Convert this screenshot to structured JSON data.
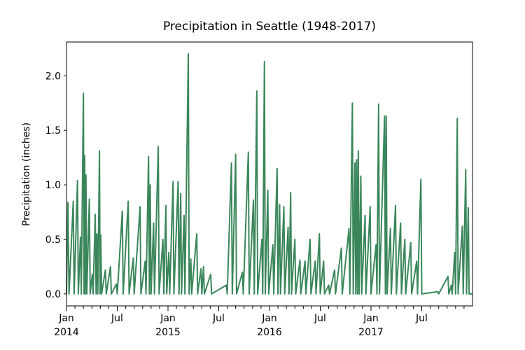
{
  "chart_data": {
    "type": "line",
    "title": "Precipitation in Seattle (1948-2017)",
    "y_label": "Precipitation (inches)",
    "series": [
      {
        "name": "precipitation",
        "color": "#3a865a",
        "x": [
          0,
          0.17,
          0.3,
          0.8,
          0.9,
          1.3,
          1.4,
          1.65,
          1.75,
          2.0,
          2.08,
          2.15,
          2.22,
          2.3,
          2.4,
          2.7,
          2.8,
          3.05,
          3.15,
          3.4,
          3.5,
          3.6,
          3.7,
          3.9,
          3.97,
          4.05,
          4.15,
          4.6,
          4.7,
          5.2,
          5.3,
          5.9,
          6.0,
          6.6,
          6.7,
          7.3,
          7.4,
          7.9,
          8.0,
          8.7,
          8.8,
          9.3,
          9.4,
          9.7,
          9.8,
          9.9,
          10.0,
          10.3,
          10.4,
          10.85,
          10.95,
          11.4,
          11.5,
          11.75,
          11.85,
          12.1,
          12.2,
          12.6,
          12.7,
          13.2,
          13.3,
          13.5,
          13.6,
          13.9,
          14.0,
          14.4,
          14.5,
          14.7,
          14.8,
          15.4,
          15.5,
          15.9,
          16.0,
          16.2,
          16.3,
          17.05,
          17.15,
          18.9,
          19.0,
          19.5,
          19.6,
          20.0,
          20.1,
          20.8,
          20.9,
          21.5,
          21.6,
          22.1,
          22.2,
          22.5,
          22.6,
          23.1,
          23.2,
          23.4,
          23.5,
          23.8,
          23.9,
          24.4,
          24.5,
          24.9,
          25.0,
          25.2,
          25.3,
          25.7,
          25.8,
          26.2,
          26.3,
          26.5,
          26.6,
          27.0,
          27.1,
          27.6,
          27.7,
          28.2,
          28.3,
          28.8,
          28.9,
          29.4,
          29.5,
          29.9,
          30.0,
          30.4,
          30.5,
          31.0,
          31.1,
          31.7,
          31.8,
          32.5,
          32.6,
          33.4,
          33.5,
          33.8,
          33.9,
          34.1,
          34.2,
          34.3,
          34.4,
          34.5,
          34.6,
          34.8,
          34.9,
          35.3,
          35.4,
          35.9,
          36.0,
          36.6,
          36.7,
          36.9,
          37.0,
          37.6,
          37.7,
          37.8,
          37.9,
          38.3,
          38.4,
          38.9,
          39.0,
          39.5,
          39.6,
          40.0,
          40.1,
          40.7,
          40.8,
          41.4,
          41.5,
          41.9,
          42.0,
          43.9,
          44.0,
          45.1,
          45.2,
          45.5,
          45.6,
          45.9,
          46.0,
          46.2,
          46.3,
          46.8,
          46.9,
          47.2,
          47.3,
          47.5,
          47.6,
          48
        ],
        "values": [
          0,
          0.84,
          0,
          0.85,
          0,
          1.04,
          0,
          0.52,
          0,
          1.84,
          0,
          1.27,
          0,
          1.09,
          0,
          0.87,
          0,
          0.18,
          0,
          0.73,
          0,
          0.55,
          0,
          1.31,
          0,
          0.54,
          0,
          0.22,
          0,
          0.25,
          0,
          0.09,
          0,
          0.76,
          0,
          0.85,
          0,
          0.33,
          0,
          0.8,
          0,
          0.3,
          0,
          1.26,
          0,
          1.0,
          0,
          0.65,
          0,
          1.35,
          0,
          0.5,
          0,
          0.81,
          0,
          0.38,
          0,
          1.03,
          0,
          1.03,
          0,
          0.92,
          0,
          0.72,
          0,
          2.2,
          0,
          0.32,
          0,
          0.55,
          0,
          0.23,
          0,
          0.25,
          0,
          0.18,
          0,
          0.08,
          0,
          1.2,
          0,
          1.28,
          0,
          0.2,
          0,
          1.3,
          0,
          0.86,
          0,
          1.86,
          0,
          0.5,
          0,
          2.13,
          0,
          0.95,
          0,
          0.45,
          0,
          1.15,
          0,
          0.82,
          0,
          0.8,
          0,
          0.61,
          0,
          0.93,
          0,
          0.5,
          0,
          0.31,
          0,
          0.3,
          0,
          0.5,
          0,
          0.3,
          0,
          0.55,
          0,
          0.3,
          0,
          0.08,
          0,
          0.22,
          0,
          0.42,
          0,
          0.6,
          0,
          1.75,
          0,
          1.2,
          0,
          1.23,
          0,
          1.31,
          0,
          1.08,
          0,
          0.72,
          0,
          0.8,
          0,
          0.45,
          0,
          1.74,
          0,
          1.63,
          0,
          1.63,
          0,
          0.6,
          0,
          0.81,
          0,
          0.65,
          0,
          0.5,
          0,
          0.47,
          0,
          0.3,
          0,
          1.05,
          0,
          0.02,
          0,
          0.16,
          0,
          0.08,
          0,
          0.38,
          0,
          1.61,
          0,
          0.62,
          0,
          1.14,
          0,
          0.79,
          0,
          0
        ]
      }
    ],
    "xlim": [
      0,
      48
    ],
    "xticks": [
      {
        "value": 0,
        "label": "Jan\n2014"
      },
      {
        "value": 6,
        "label": "Jul"
      },
      {
        "value": 12,
        "label": "Jan\n2015"
      },
      {
        "value": 18,
        "label": "Jul"
      },
      {
        "value": 24,
        "label": "Jan\n2016"
      },
      {
        "value": 30,
        "label": "Jul"
      },
      {
        "value": 36,
        "label": "Jan\n2017"
      },
      {
        "value": 42,
        "label": "Jul"
      }
    ],
    "xminorticks": [
      1,
      2,
      3,
      4,
      5,
      7,
      8,
      9,
      10,
      11,
      13,
      14,
      15,
      16,
      17,
      19,
      20,
      21,
      22,
      23,
      25,
      26,
      27,
      28,
      29,
      31,
      32,
      33,
      34,
      35,
      37,
      38,
      39,
      40,
      41,
      43,
      44,
      45,
      46,
      47
    ],
    "ylim": [
      -0.11,
      2.31
    ],
    "yticks": [
      {
        "value": 0,
        "label": "0.0"
      },
      0.5,
      {
        "value": 1,
        "label": "1.0"
      },
      1.5,
      {
        "value": 2,
        "label": "2.0"
      }
    ]
  }
}
